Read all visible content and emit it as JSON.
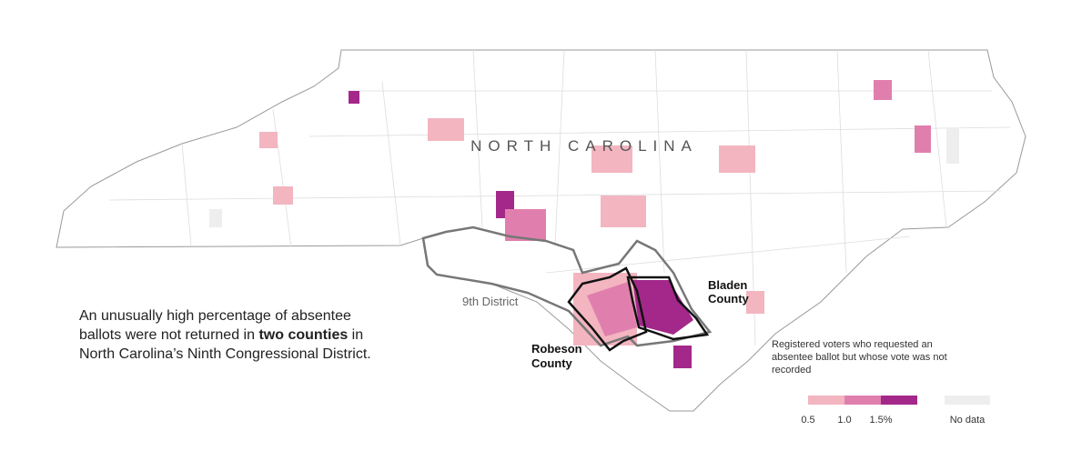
{
  "map": {
    "state_label": "NORTH CAROLINA",
    "district_label": "9th District",
    "county_labels": [
      "Bladen County",
      "Robeson County"
    ],
    "annotation": {
      "before": "An unusually high percentage of absentee ballots were not returned in ",
      "bold": "two counties",
      "after": " in North Carolina’s Ninth Congressional District."
    }
  },
  "legend": {
    "title": "Registered voters who requested an absentee ballot but whose vote was not recorded",
    "bin_colors": [
      "#ffffff",
      "#f3b5c0",
      "#e07fae",
      "#a3288a"
    ],
    "bin_labels": [
      "0.5",
      "1.0",
      "1.5%"
    ],
    "no_data_color": "#eeeeee",
    "no_data_label": "No data"
  }
}
